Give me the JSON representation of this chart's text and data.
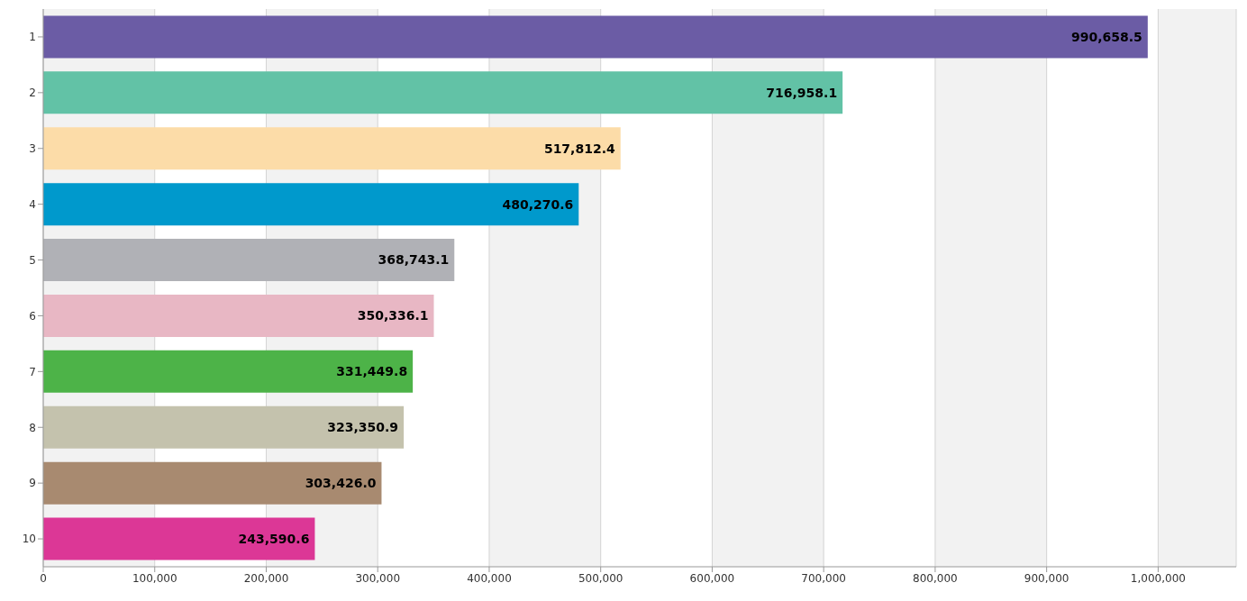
{
  "chart_data": {
    "type": "bar",
    "orientation": "horizontal",
    "categories": [
      "1",
      "2",
      "3",
      "4",
      "5",
      "6",
      "7",
      "8",
      "9",
      "10"
    ],
    "values": [
      990658.5,
      716958.1,
      517812.4,
      480270.6,
      368743.1,
      350336.1,
      331449.8,
      323350.9,
      303426.0,
      243590.6
    ],
    "colors": [
      "#6b5ca5",
      "#62c2a6",
      "#fcdca8",
      "#0099cc",
      "#b0b1b6",
      "#e8b7c4",
      "#4db348",
      "#c4c2ad",
      "#a88a70",
      "#dc3796"
    ],
    "value_labels": [
      "990,658.5",
      "716,958.1",
      "517,812.4",
      "480,270.6",
      "368,743.1",
      "350,336.1",
      "331,449.8",
      "323,350.9",
      "303,426.0",
      "243,590.6"
    ],
    "xlim": [
      0,
      1070000
    ],
    "xticks": [
      {
        "value": 0,
        "label": "0"
      },
      {
        "value": 100000,
        "label": "100,000"
      },
      {
        "value": 200000,
        "label": "200,000"
      },
      {
        "value": 300000,
        "label": "300,000"
      },
      {
        "value": 400000,
        "label": "400,000"
      },
      {
        "value": 500000,
        "label": "500,000"
      },
      {
        "value": 600000,
        "label": "600,000"
      },
      {
        "value": 700000,
        "label": "700,000"
      },
      {
        "value": 800000,
        "label": "800,000"
      },
      {
        "value": 900000,
        "label": "900,000"
      },
      {
        "value": 1000000,
        "label": "1,000,000"
      }
    ],
    "grid": "x"
  }
}
